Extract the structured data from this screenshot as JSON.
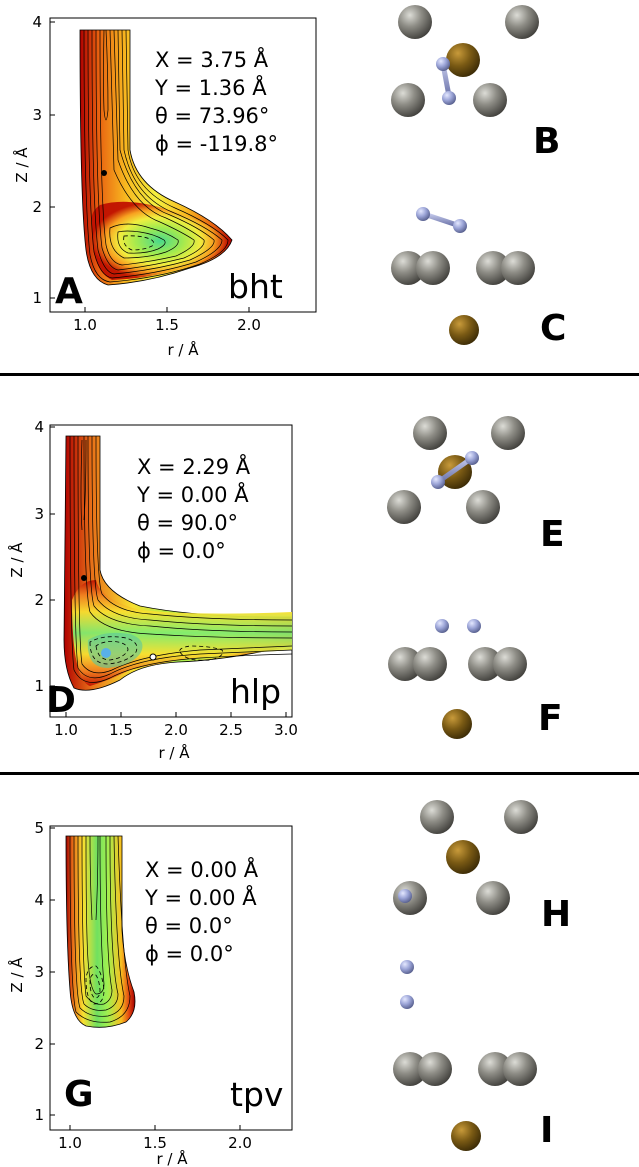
{
  "panels": [
    {
      "letter": "A",
      "tag": "bht",
      "ylabel": "Z / Å",
      "xlabel": "r / Å",
      "xticks": [
        "1.0",
        "1.5",
        "2.0"
      ],
      "yticks": [
        "1",
        "2",
        "3",
        "4"
      ],
      "params": [
        "X = 3.75 Å",
        "Y = 1.36 Å",
        "θ = 73.96°",
        "ϕ = -119.8°"
      ],
      "top_label": "B",
      "bottom_label": "C"
    },
    {
      "letter": "D",
      "tag": "hlp",
      "ylabel": "Z / Å",
      "xlabel": "r / Å",
      "xticks": [
        "1.0",
        "1.5",
        "2.0",
        "2.5",
        "3.0"
      ],
      "yticks": [
        "1",
        "2",
        "3",
        "4"
      ],
      "params": [
        "X = 2.29 Å",
        "Y = 0.00 Å",
        "θ = 90.0°",
        "ϕ = 0.0°"
      ],
      "top_label": "E",
      "bottom_label": "F"
    },
    {
      "letter": "G",
      "tag": "tpv",
      "ylabel": "Z / Å",
      "xlabel": "r / Å",
      "xticks": [
        "1.0",
        "1.5",
        "2.0"
      ],
      "yticks": [
        "1",
        "2",
        "3",
        "4",
        "5"
      ],
      "params": [
        "X = 0.00 Å",
        "Y = 0.00 Å",
        "θ = 0.0°",
        "ϕ = 0.0°"
      ],
      "top_label": "H",
      "bottom_label": "I"
    }
  ],
  "colors": {
    "grey_atom": "#8c8b83",
    "gold_atom": "#7a5a14",
    "h2_atom": "#9aa3d6"
  }
}
